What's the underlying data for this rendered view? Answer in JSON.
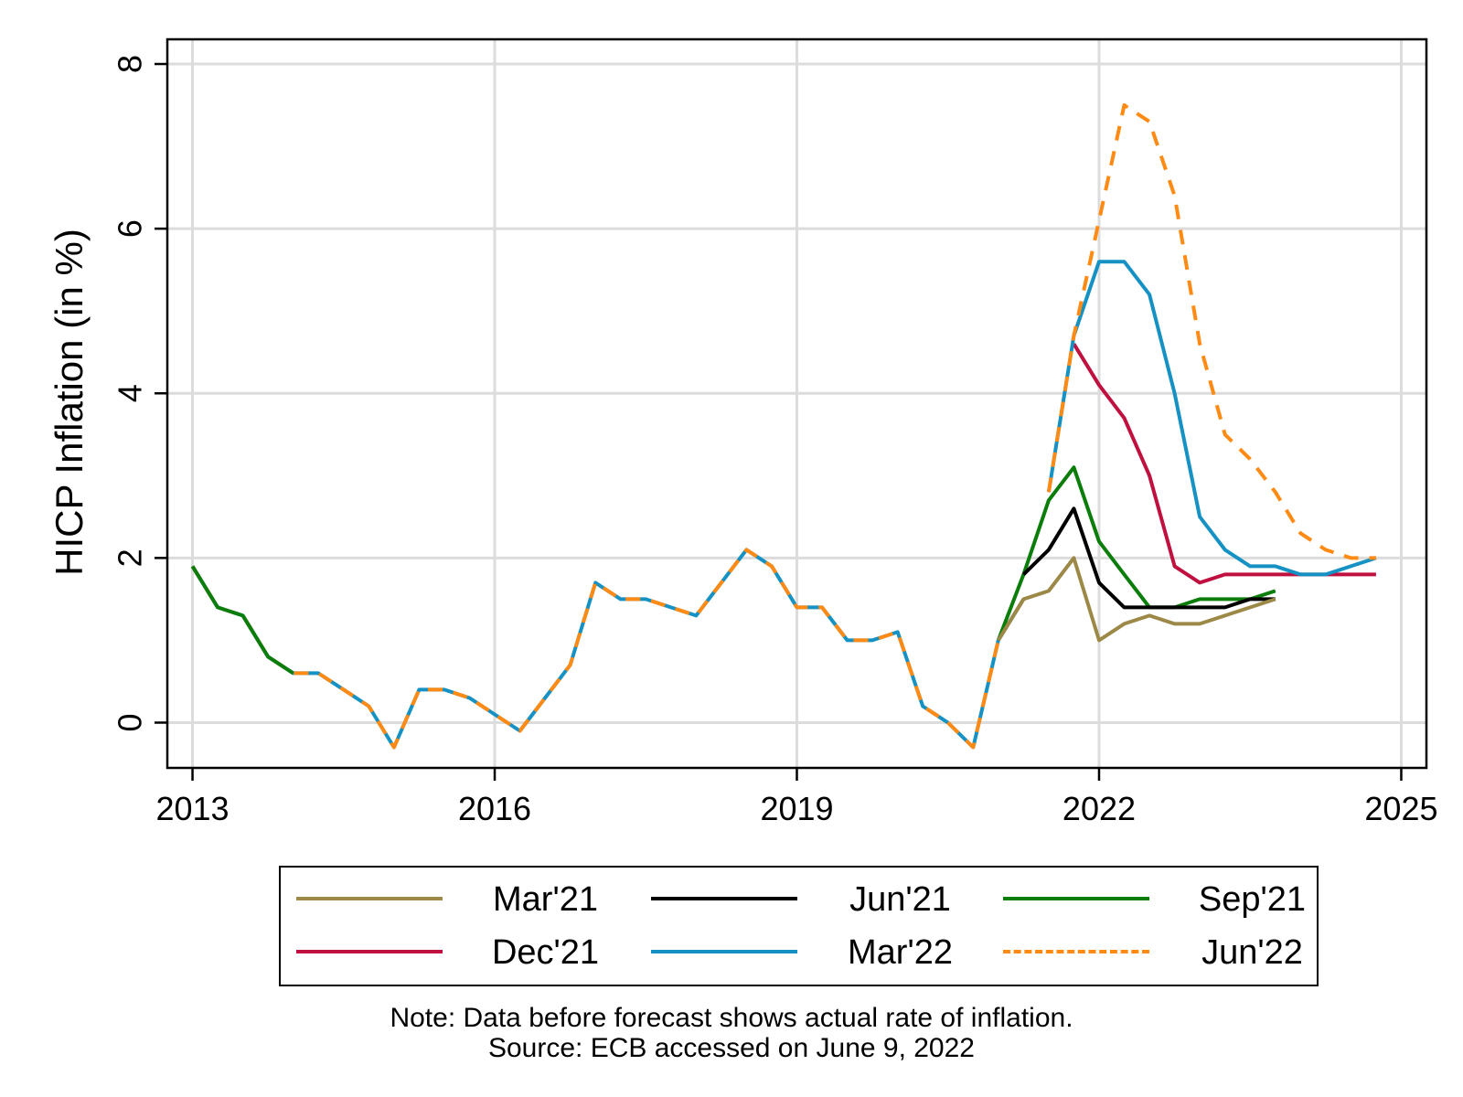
{
  "chart_data": {
    "type": "line",
    "title": "",
    "xlabel": "",
    "ylabel": "HICP Inflation (in %)",
    "xlim": [
      2012.75,
      2025.25
    ],
    "ylim": [
      -0.55,
      8.3
    ],
    "xticks": [
      2013,
      2016,
      2019,
      2022,
      2025
    ],
    "yticks": [
      0,
      2,
      4,
      6,
      8
    ],
    "grid": true,
    "legend_position": "bottom",
    "history": {
      "x": [
        2013.0,
        2013.25,
        2013.5,
        2013.75,
        2014.0,
        2014.25,
        2014.5,
        2014.75,
        2015.0,
        2015.25,
        2015.5,
        2015.75,
        2016.0,
        2016.25,
        2016.5,
        2016.75,
        2017.0,
        2017.25,
        2017.5,
        2017.75,
        2018.0,
        2018.25,
        2018.5,
        2018.75,
        2019.0,
        2019.25,
        2019.5,
        2019.75,
        2020.0,
        2020.25,
        2020.5,
        2020.75,
        2021.0,
        2021.25
      ],
      "y": [
        1.9,
        1.4,
        1.3,
        0.8,
        0.6,
        0.6,
        0.4,
        0.2,
        -0.3,
        0.4,
        0.4,
        0.3,
        0.1,
        -0.1,
        0.3,
        0.7,
        1.7,
        1.5,
        1.5,
        1.4,
        1.3,
        1.7,
        2.1,
        1.9,
        1.4,
        1.4,
        1.0,
        1.0,
        1.1,
        0.2,
        0.0,
        -0.3,
        1.0,
        1.5
      ]
    },
    "series": [
      {
        "name": "Mar'21",
        "color": "#9C8847",
        "dashed": false,
        "x": [
          2021.0,
          2021.25,
          2021.5,
          2021.75,
          2022.0,
          2022.25,
          2022.5,
          2022.75,
          2023.0,
          2023.25,
          2023.5,
          2023.75
        ],
        "y": [
          1.0,
          1.5,
          1.6,
          2.0,
          1.0,
          1.2,
          1.3,
          1.2,
          1.2,
          1.3,
          1.4,
          1.5
        ]
      },
      {
        "name": "Jun'21",
        "color": "#000000",
        "dashed": false,
        "x": [
          2021.25,
          2021.5,
          2021.75,
          2022.0,
          2022.25,
          2022.5,
          2022.75,
          2023.0,
          2023.25,
          2023.5,
          2023.75
        ],
        "y": [
          1.8,
          2.1,
          2.6,
          1.7,
          1.4,
          1.4,
          1.4,
          1.4,
          1.4,
          1.5,
          1.5
        ]
      },
      {
        "name": "Sep'21",
        "color": "#0A7D0A",
        "dashed": false,
        "x": [
          2013.0,
          2013.25,
          2013.5,
          2013.75,
          2014.0,
          2021.0,
          2021.25,
          2021.5,
          2021.75,
          2022.0,
          2022.25,
          2022.5,
          2022.75,
          2023.0,
          2023.25,
          2023.5,
          2023.75
        ],
        "y": [
          1.9,
          1.4,
          1.3,
          0.8,
          0.6,
          1.0,
          1.8,
          2.7,
          3.1,
          2.2,
          1.8,
          1.4,
          1.4,
          1.5,
          1.5,
          1.5,
          1.6
        ]
      },
      {
        "name": "Dec'21",
        "color": "#C0103F",
        "dashed": false,
        "x": [
          2021.75,
          2022.0,
          2022.25,
          2022.5,
          2022.75,
          2023.0,
          2023.25,
          2023.5,
          2023.75,
          2024.0,
          2024.25,
          2024.5,
          2024.75
        ],
        "y": [
          4.6,
          4.1,
          3.7,
          3.0,
          1.9,
          1.7,
          1.8,
          1.8,
          1.8,
          1.8,
          1.8,
          1.8,
          1.8
        ]
      },
      {
        "name": "Mar'22",
        "color": "#1591C4",
        "dashed": false,
        "x": [
          2021.5,
          2021.75,
          2022.0,
          2022.25,
          2022.5,
          2022.75,
          2023.0,
          2023.25,
          2023.5,
          2023.75,
          2024.0,
          2024.25,
          2024.5,
          2024.75
        ],
        "y": [
          2.8,
          4.7,
          5.6,
          5.6,
          5.2,
          4.0,
          2.5,
          2.1,
          1.9,
          1.9,
          1.8,
          1.8,
          1.9,
          2.0
        ]
      },
      {
        "name": "Jun'22",
        "color": "#FF8A14",
        "dashed": true,
        "x": [
          2021.5,
          2021.75,
          2022.0,
          2022.25,
          2022.5,
          2022.75,
          2023.0,
          2023.25,
          2023.5,
          2023.75,
          2024.0,
          2024.25,
          2024.5,
          2024.75
        ],
        "y": [
          2.8,
          4.7,
          6.1,
          7.5,
          7.3,
          6.4,
          4.6,
          3.5,
          3.2,
          2.8,
          2.3,
          2.1,
          2.0,
          2.0
        ]
      }
    ]
  },
  "note_line1": "Note: Data before forecast shows actual rate of inflation.",
  "note_line2": "Source: ECB accessed on June 9, 2022"
}
